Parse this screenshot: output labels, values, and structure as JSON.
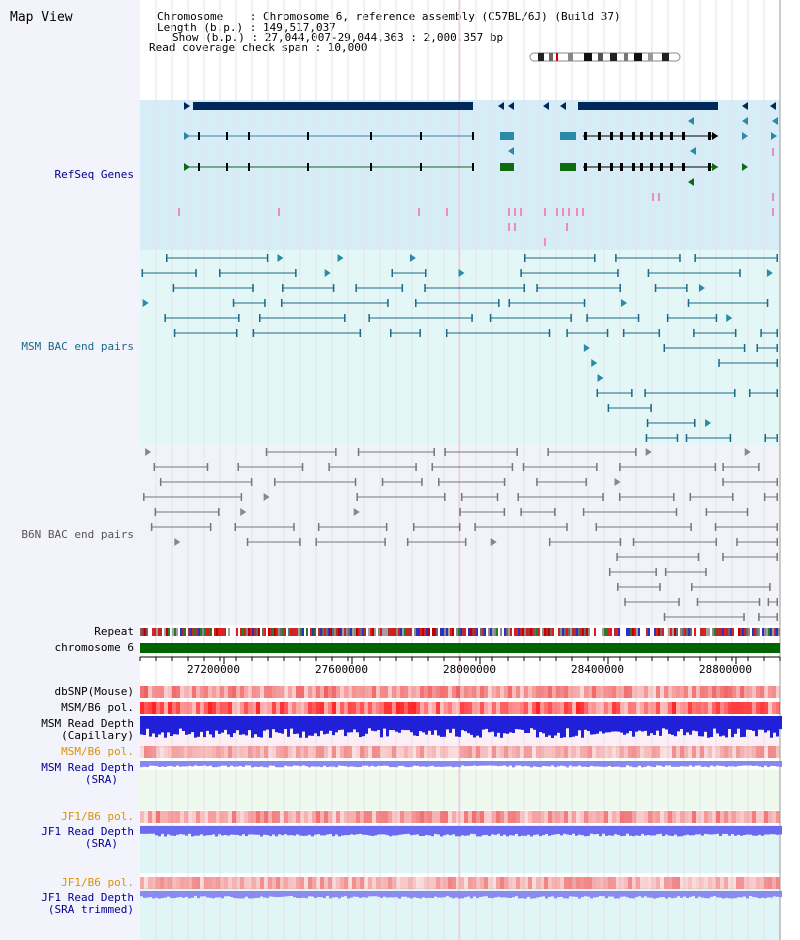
{
  "title": "Map View",
  "info": {
    "line1": "Chromosome    : Chromosome 6, reference assembly (C57BL/6J) (Build 37)",
    "line2": "Length (b.p.) : 149,517,037",
    "line3": "Show (b.p.) : 27,044,007-29,044,363 : 2,000,357 bp",
    "line4": "Read coverage check span : 10,000"
  },
  "tracks": {
    "refseq": "RefSeq Genes",
    "msm_bac": "MSM BAC end pairs",
    "b6n_bac": "B6N BAC end pairs",
    "repeat": "Repeat",
    "chromosome": "chromosome 6",
    "dbsnp": "dbSNP(Mouse)",
    "msm_b6_pol": "MSM/B6 pol.",
    "msm_read_depth_cap_1": "MSM Read Depth",
    "msm_read_depth_cap_2": "(Capillary)",
    "msm_b6_pol_2": "MSM/B6 pol.",
    "msm_read_depth_sra_1": "MSM Read Depth",
    "msm_read_depth_sra_2": "(SRA)",
    "jf1_b6_pol": "JF1/B6 pol.",
    "jf1_read_depth_1": "JF1 Read Depth",
    "jf1_read_depth_2": "(SRA)",
    "jf1_b6_pol_2": "JF1/B6 pol.",
    "jf1_trim_1": "JF1 Read Depth",
    "jf1_trim_2": "(SRA trimmed)"
  },
  "axis": {
    "ticks": [
      "27200000",
      "27600000",
      "28000000",
      "28400000",
      "28800000"
    ]
  },
  "colors": {
    "refseq_bg": "#d6ecf7",
    "msm_bg": "#e3f7f7",
    "b6n_bg": "#f1f3f9",
    "gene_dark": "#00285a",
    "gene_cyan": "#2a8aa8",
    "gene_green": "#0f6a10",
    "msm_line": "#1a6a88",
    "b6n_line": "#777777",
    "chrom_green": "#006400",
    "snp_pink": "#f4a0a0",
    "depth_blue": "#2a2ae0",
    "depth_light": "#8a8af0",
    "label_blue": "#000090",
    "label_orange": "#e09000"
  }
}
